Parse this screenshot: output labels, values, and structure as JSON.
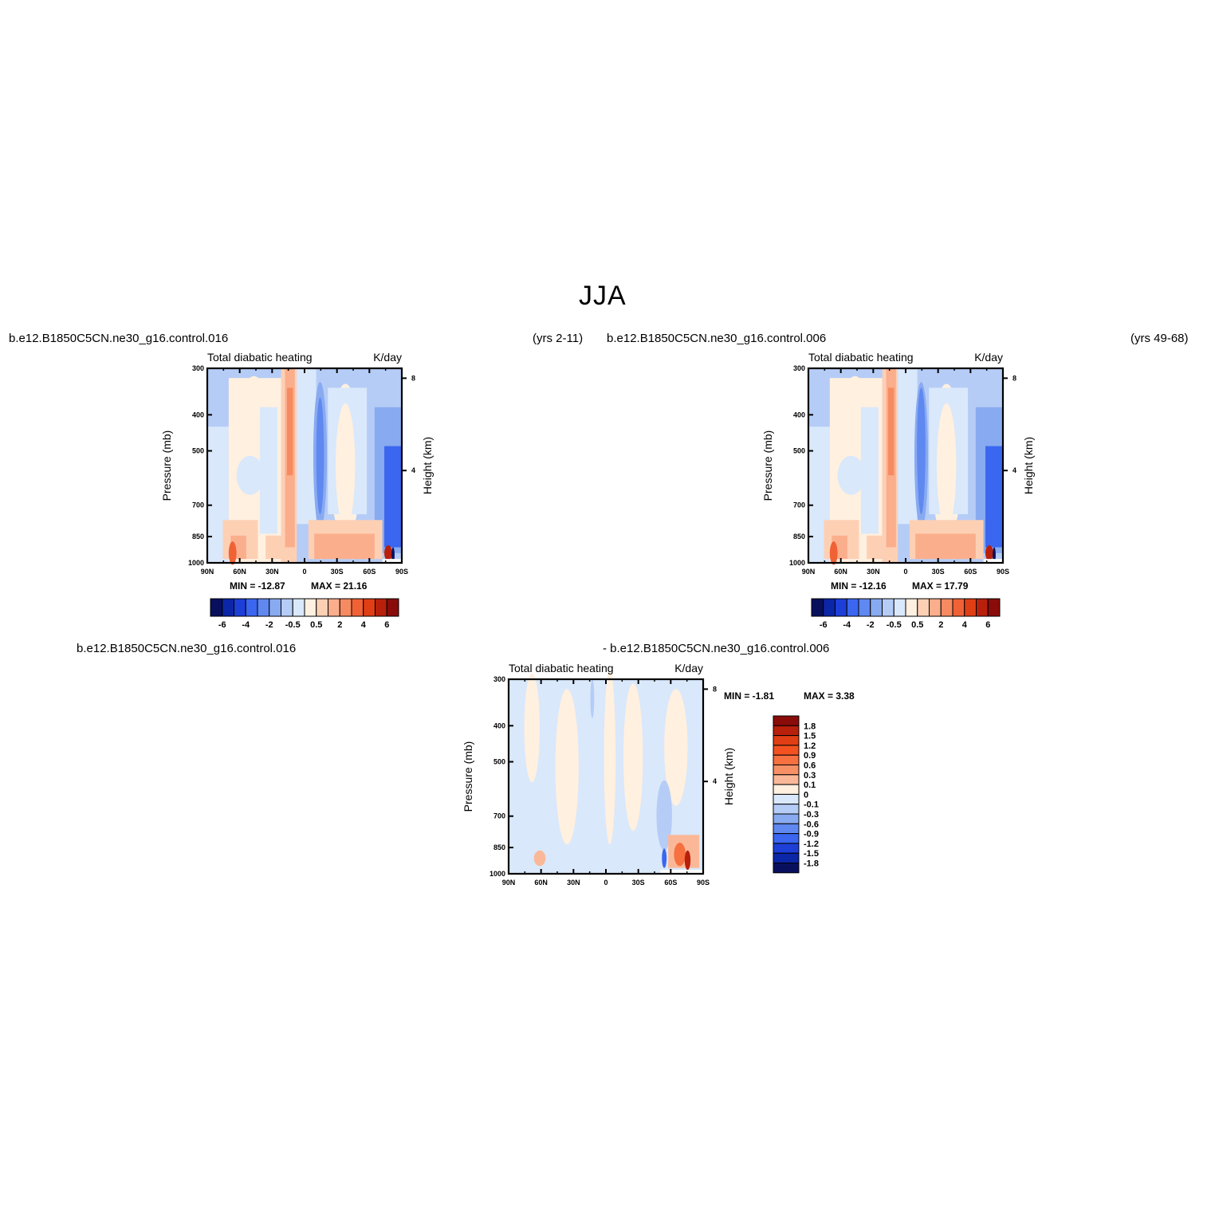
{
  "figure": {
    "season_title": "JJA",
    "top_left": {
      "case": "b.e12.B1850C5CN.ne30_g16.control.016",
      "years": "(yrs 2-11)"
    },
    "top_right": {
      "case": "b.e12.B1850C5CN.ne30_g16.control.006",
      "years": "(yrs 49-68)"
    },
    "bottom": {
      "case_a": "b.e12.B1850C5CN.ne30_g16.control.016",
      "case_b": "- b.e12.B1850C5CN.ne30_g16.control.006"
    }
  },
  "colors": {
    "levels_full": [
      "#08105e",
      "#0c26a8",
      "#1d3fd8",
      "#3a66f0",
      "#5f88f0",
      "#88aaf0",
      "#b5ccf6",
      "#d9e8fb",
      "#fff0e0",
      "#fdd0b4",
      "#fbae8c",
      "#f68a60",
      "#f06235",
      "#e03e14",
      "#b8200c",
      "#8a0c0a"
    ]
  },
  "chart_data": [
    {
      "type": "heatmap",
      "panel": "left",
      "title": "Total diabatic heating",
      "units": "K/day",
      "ylabel": "Pressure (mb)",
      "ylabel_right": "Height (km)",
      "x_ticks": [
        "90N",
        "60N",
        "30N",
        "0",
        "30S",
        "60S",
        "90S"
      ],
      "y_ticks": [
        "300",
        "400",
        "500",
        "700",
        "850",
        "1000"
      ],
      "y_ticks_right": [
        "8",
        "4"
      ],
      "xlim": [
        90,
        -90
      ],
      "ylim": [
        1000,
        300
      ],
      "y_scale": "log",
      "min_label": "MIN = -12.87",
      "max_label": "MAX = 21.16",
      "colorbar_labels": [
        "-6",
        "-4",
        "-2",
        "-0.5",
        "0.5",
        "2",
        "4",
        "6"
      ],
      "colorbar_orientation": "horizontal"
    },
    {
      "type": "heatmap",
      "panel": "right",
      "title": "Total diabatic heating",
      "units": "K/day",
      "ylabel": "Pressure (mb)",
      "ylabel_right": "Height (km)",
      "x_ticks": [
        "90N",
        "60N",
        "30N",
        "0",
        "30S",
        "60S",
        "90S"
      ],
      "y_ticks": [
        "300",
        "400",
        "500",
        "700",
        "850",
        "1000"
      ],
      "y_ticks_right": [
        "8",
        "4"
      ],
      "xlim": [
        90,
        -90
      ],
      "ylim": [
        1000,
        300
      ],
      "y_scale": "log",
      "min_label": "MIN = -12.16",
      "max_label": "MAX = 17.79",
      "colorbar_labels": [
        "-6",
        "-4",
        "-2",
        "-0.5",
        "0.5",
        "2",
        "4",
        "6"
      ],
      "colorbar_orientation": "horizontal"
    },
    {
      "type": "heatmap",
      "panel": "difference",
      "title": "Total diabatic heating",
      "units": "K/day",
      "ylabel": "Pressure (mb)",
      "ylabel_right": "Height (km)",
      "x_ticks": [
        "90N",
        "60N",
        "30N",
        "0",
        "30S",
        "60S",
        "90S"
      ],
      "y_ticks": [
        "300",
        "400",
        "500",
        "700",
        "850",
        "1000"
      ],
      "y_ticks_right": [
        "8",
        "4"
      ],
      "xlim": [
        90,
        -90
      ],
      "ylim": [
        1000,
        300
      ],
      "y_scale": "log",
      "min_label": "MIN = -1.81",
      "max_label": "MAX = 3.38",
      "colorbar_labels": [
        "1.8",
        "1.5",
        "1.2",
        "0.9",
        "0.6",
        "0.3",
        "0.1",
        "0",
        "-0.1",
        "-0.3",
        "-0.6",
        "-0.9",
        "-1.2",
        "-1.5",
        "-1.8"
      ],
      "colorbar_colors": [
        "#8a0c0a",
        "#b8200c",
        "#e03e14",
        "#f35220",
        "#f67040",
        "#f89066",
        "#fbb898",
        "#fff0e0",
        "#d9e8fb",
        "#b5ccf6",
        "#88aaf0",
        "#5f88f0",
        "#3a66f0",
        "#1d3fd8",
        "#0c26a8",
        "#08105e"
      ],
      "colorbar_orientation": "vertical"
    }
  ]
}
